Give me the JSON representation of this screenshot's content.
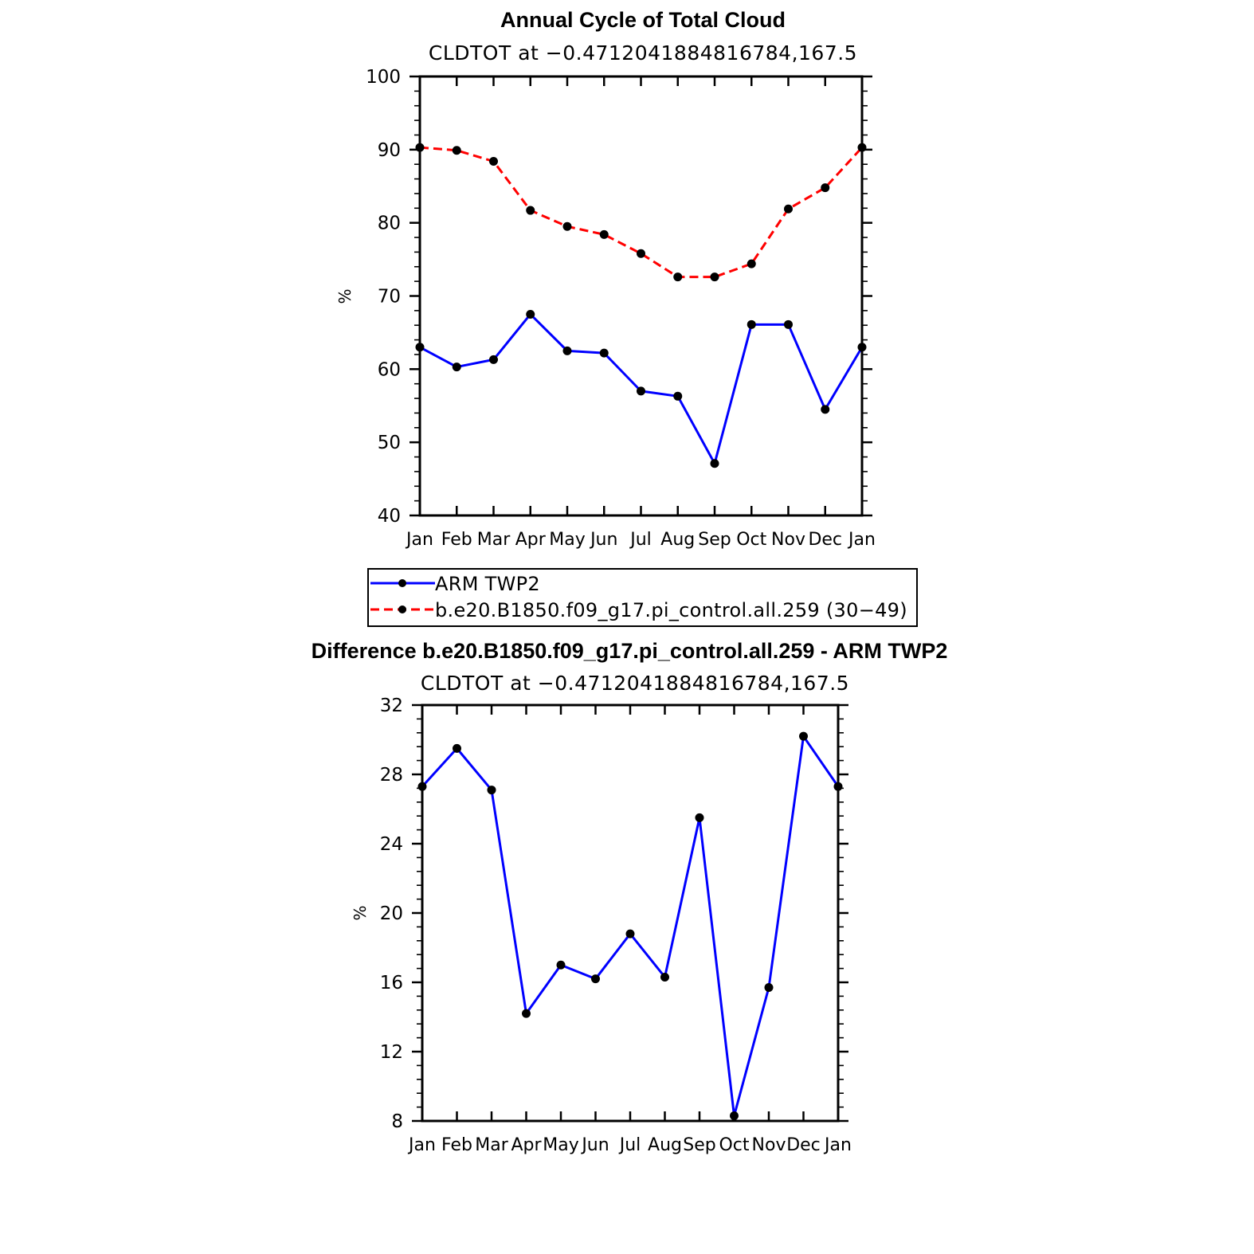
{
  "chart_data": [
    {
      "type": "line",
      "title": "Annual Cycle of Total Cloud",
      "subtitle": "CLDTOT at −0.4712041884816784,167.5",
      "xlabel": "",
      "ylabel": "%",
      "categories": [
        "Jan",
        "Feb",
        "Mar",
        "Apr",
        "May",
        "Jun",
        "Jul",
        "Aug",
        "Sep",
        "Oct",
        "Nov",
        "Dec",
        "Jan"
      ],
      "ylim": [
        40,
        100
      ],
      "yticks": [
        40,
        50,
        60,
        70,
        80,
        90,
        100
      ],
      "series": [
        {
          "name": "ARM TWP2",
          "color": "#0000ff",
          "dash": "solid",
          "values": [
            63.0,
            60.3,
            61.3,
            67.5,
            62.5,
            62.2,
            57.0,
            56.3,
            47.1,
            66.1,
            66.1,
            54.5,
            63.0
          ]
        },
        {
          "name": "b.e20.B1850.f09_g17.pi_control.all.259 (30−49)",
          "color": "#ff0000",
          "dash": "dashed",
          "values": [
            90.3,
            89.9,
            88.4,
            81.7,
            79.5,
            78.4,
            75.8,
            72.6,
            72.6,
            74.4,
            81.9,
            84.8,
            90.3
          ]
        }
      ],
      "legend": "below"
    },
    {
      "type": "line",
      "title": "Difference b.e20.B1850.f09_g17.pi_control.all.259 - ARM TWP2",
      "subtitle": "CLDTOT at −0.4712041884816784,167.5",
      "xlabel": "",
      "ylabel": "%",
      "categories": [
        "Jan",
        "Feb",
        "Mar",
        "Apr",
        "May",
        "Jun",
        "Jul",
        "Aug",
        "Sep",
        "Oct",
        "Nov",
        "Dec",
        "Jan"
      ],
      "ylim": [
        8,
        32
      ],
      "yticks": [
        8,
        12,
        16,
        20,
        24,
        28,
        32
      ],
      "series": [
        {
          "name": "Difference",
          "color": "#0000ff",
          "dash": "solid",
          "values": [
            27.3,
            29.5,
            27.1,
            14.2,
            17.0,
            16.2,
            18.8,
            16.3,
            25.5,
            8.3,
            15.7,
            30.2,
            27.3
          ]
        }
      ]
    }
  ]
}
